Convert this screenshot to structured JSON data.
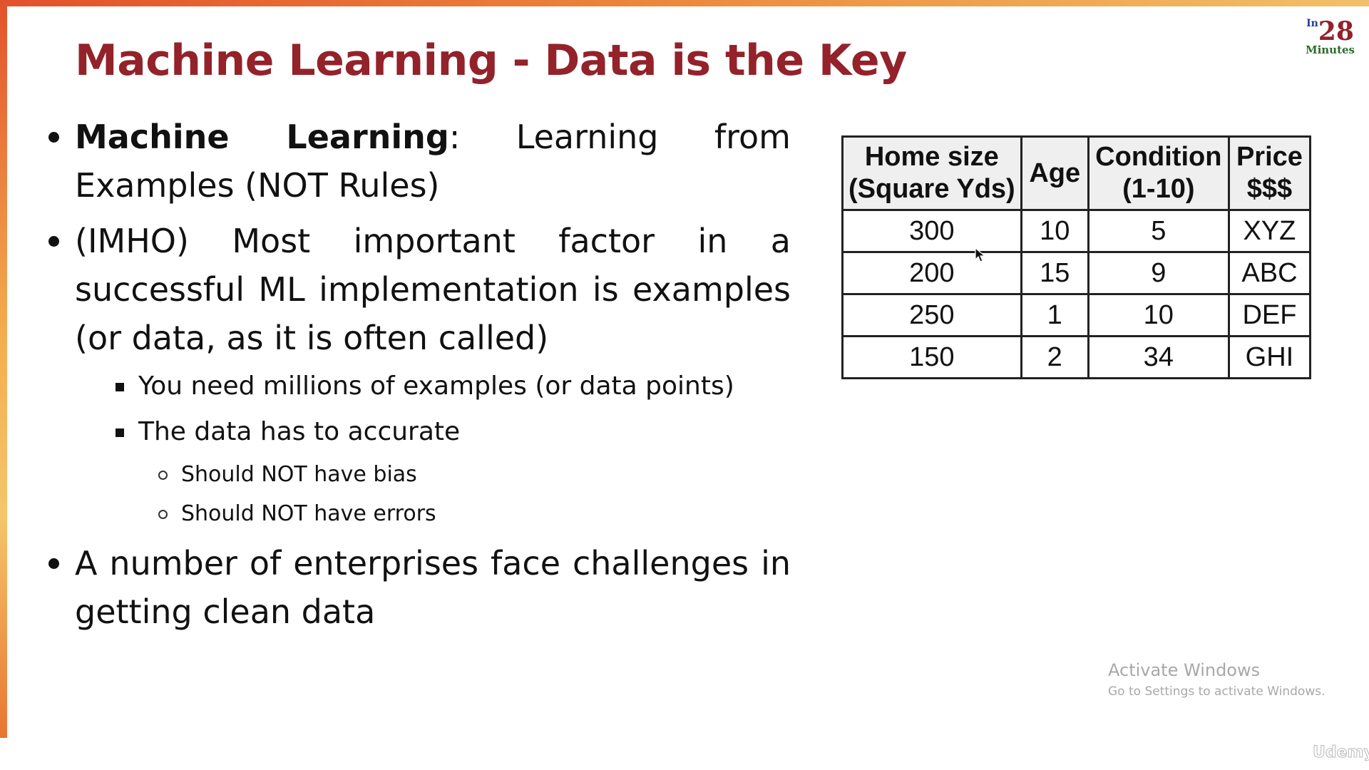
{
  "title": "Machine Learning - Data is the Key",
  "logo": {
    "prefix": "In",
    "number": "28",
    "suffix": "Minutes"
  },
  "bullets": {
    "b1": {
      "term": "Machine Learning",
      "text": ": Learning from Examples (NOT Rules)"
    },
    "b2": {
      "text": "(IMHO) Most important factor in a successful ML implementation is examples (or data, as it is often called)"
    },
    "b2_sub1": {
      "text": "You need millions of examples (or data points)"
    },
    "b2_sub2": {
      "text": "The data has to accurate"
    },
    "b2_sub2_items": [
      {
        "text": "Should NOT have bias"
      },
      {
        "text": "Should NOT have errors"
      }
    ],
    "b3": {
      "text": "A number of enterprises face challenges in getting clean data"
    }
  },
  "table": {
    "headers": [
      {
        "line1": "Home size",
        "line2": "(Square Yds)"
      },
      {
        "line1": "Age",
        "line2": ""
      },
      {
        "line1": "Condition",
        "line2": "(1-10)"
      },
      {
        "line1": "Price",
        "line2": "$$$"
      }
    ],
    "rows": [
      [
        "300",
        "10",
        "5",
        "XYZ"
      ],
      [
        "200",
        "15",
        "9",
        "ABC"
      ],
      [
        "250",
        "1",
        "10",
        "DEF"
      ],
      [
        "150",
        "2",
        "34",
        "GHI"
      ]
    ]
  },
  "watermark": {
    "line1": "Activate Windows",
    "line2": "Go to Settings to activate Windows.",
    "brand": "Udemy"
  },
  "colors": {
    "title": "#93222a",
    "accent_orange": "#ec8a3c",
    "header_bg": "#efefef"
  }
}
